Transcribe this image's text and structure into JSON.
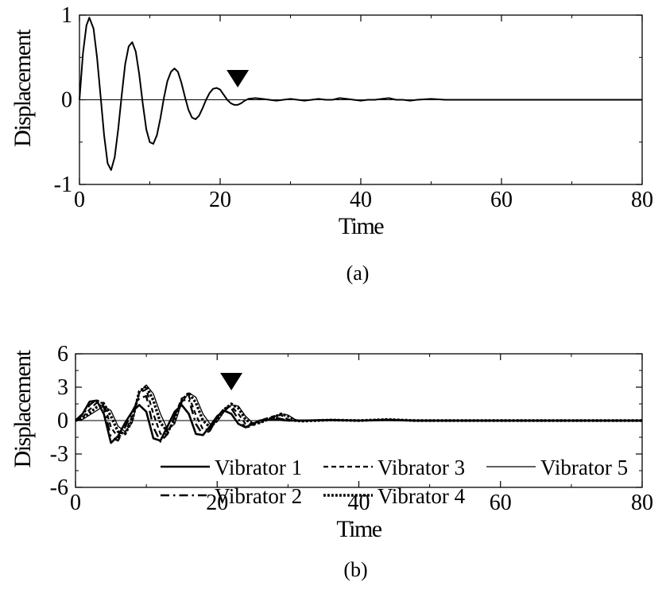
{
  "chart_data": [
    {
      "panel_label": "(a)",
      "type": "line",
      "xlabel": "Time",
      "ylabel": "Displacement",
      "xlim": [
        0,
        80
      ],
      "ylim": [
        -1,
        1
      ],
      "xticks": [
        0,
        20,
        40,
        60,
        80
      ],
      "yticks": [
        -1,
        0,
        1
      ],
      "marker_x": 22.5,
      "series": [
        {
          "values": [
            [
              0,
              0
            ],
            [
              0.5,
              0.55
            ],
            [
              1,
              0.88
            ],
            [
              1.4,
              0.97
            ],
            [
              2,
              0.84
            ],
            [
              2.5,
              0.5
            ],
            [
              3,
              0.05
            ],
            [
              3.5,
              -0.42
            ],
            [
              4,
              -0.75
            ],
            [
              4.5,
              -0.83
            ],
            [
              5,
              -0.68
            ],
            [
              5.5,
              -0.35
            ],
            [
              6,
              0.05
            ],
            [
              6.5,
              0.42
            ],
            [
              7,
              0.63
            ],
            [
              7.5,
              0.68
            ],
            [
              8,
              0.57
            ],
            [
              8.5,
              0.3
            ],
            [
              9,
              -0.05
            ],
            [
              9.5,
              -0.35
            ],
            [
              10,
              -0.5
            ],
            [
              10.5,
              -0.52
            ],
            [
              11,
              -0.42
            ],
            [
              11.5,
              -0.22
            ],
            [
              12,
              0.02
            ],
            [
              12.5,
              0.22
            ],
            [
              13,
              0.33
            ],
            [
              13.5,
              0.37
            ],
            [
              14,
              0.33
            ],
            [
              14.5,
              0.2
            ],
            [
              15,
              0.03
            ],
            [
              15.5,
              -0.12
            ],
            [
              16,
              -0.21
            ],
            [
              16.5,
              -0.23
            ],
            [
              17,
              -0.19
            ],
            [
              17.5,
              -0.1
            ],
            [
              18,
              0.0
            ],
            [
              18.5,
              0.08
            ],
            [
              19,
              0.13
            ],
            [
              19.5,
              0.14
            ],
            [
              20,
              0.12
            ],
            [
              20.5,
              0.06
            ],
            [
              21,
              0.0
            ],
            [
              21.5,
              -0.04
            ],
            [
              22,
              -0.06
            ],
            [
              22.5,
              -0.06
            ],
            [
              23,
              -0.04
            ],
            [
              23.5,
              -0.01
            ],
            [
              24,
              0.01
            ],
            [
              25,
              0.02
            ],
            [
              26,
              0.01
            ],
            [
              27,
              0.0
            ],
            [
              28,
              -0.01
            ],
            [
              29,
              0.0
            ],
            [
              30,
              0.01
            ],
            [
              31,
              0.0
            ],
            [
              32,
              -0.01
            ],
            [
              33,
              0.0
            ],
            [
              34,
              0.01
            ],
            [
              35,
              0.0
            ],
            [
              36,
              0.0
            ],
            [
              37,
              0.02
            ],
            [
              38,
              0.01
            ],
            [
              39,
              0.0
            ],
            [
              40,
              -0.01
            ],
            [
              41,
              0.0
            ],
            [
              42,
              0.0
            ],
            [
              43,
              0.01
            ],
            [
              44,
              0.02
            ],
            [
              45,
              0.0
            ],
            [
              46,
              0.0
            ],
            [
              47,
              -0.01
            ],
            [
              48,
              0.0
            ],
            [
              50,
              0.01
            ],
            [
              52,
              0.0
            ],
            [
              56,
              0.0
            ],
            [
              60,
              0.0
            ],
            [
              70,
              0.0
            ],
            [
              80,
              0.0
            ]
          ]
        }
      ]
    },
    {
      "panel_label": "(b)",
      "type": "line",
      "xlabel": "Time",
      "ylabel": "Displacement",
      "xlim": [
        0,
        80
      ],
      "ylim": [
        -6,
        6
      ],
      "xticks": [
        0,
        20,
        40,
        60,
        80
      ],
      "yticks": [
        -6,
        -3,
        0,
        3,
        6
      ],
      "marker_x": 22,
      "legend_placement": "bottom",
      "series": [
        {
          "name": "Vibrator 1",
          "dash": "solid-thick",
          "values": [
            [
              0,
              0
            ],
            [
              1,
              0.6
            ],
            [
              2,
              1.7
            ],
            [
              3,
              1.8
            ],
            [
              4,
              0.6
            ],
            [
              5,
              -2.0
            ],
            [
              6,
              -1.4
            ],
            [
              7,
              -0.2
            ],
            [
              8,
              0.8
            ],
            [
              9,
              1.4
            ],
            [
              10,
              0.8
            ],
            [
              11,
              -1.6
            ],
            [
              12,
              -1.8
            ],
            [
              13,
              -0.5
            ],
            [
              14,
              0.8
            ],
            [
              15,
              1.4
            ],
            [
              16,
              0.6
            ],
            [
              17,
              -1.2
            ],
            [
              18,
              -1.3
            ],
            [
              19,
              -0.5
            ],
            [
              20,
              0.4
            ],
            [
              21,
              0.9
            ],
            [
              22,
              0.6
            ],
            [
              23,
              -0.3
            ],
            [
              24,
              -0.6
            ],
            [
              25,
              -0.3
            ],
            [
              26,
              0.0
            ],
            [
              28,
              0.1
            ],
            [
              30,
              0.0
            ],
            [
              32,
              0.0
            ],
            [
              36,
              0.05
            ],
            [
              40,
              0.0
            ],
            [
              44,
              0.05
            ],
            [
              48,
              0.0
            ],
            [
              52,
              0.0
            ],
            [
              56,
              0.0
            ],
            [
              60,
              0.0
            ],
            [
              70,
              0.0
            ],
            [
              80,
              0.0
            ]
          ]
        },
        {
          "name": "Vibrator 2",
          "dash": "dash-dot",
          "values": [
            [
              0,
              0
            ],
            [
              1,
              0.5
            ],
            [
              2,
              1.4
            ],
            [
              3,
              1.9
            ],
            [
              4,
              1.2
            ],
            [
              5,
              -1.5
            ],
            [
              6,
              -1.8
            ],
            [
              7,
              -0.6
            ],
            [
              8,
              0.8
            ],
            [
              9,
              2.0
            ],
            [
              10,
              2.2
            ],
            [
              11,
              -0.6
            ],
            [
              12,
              -1.9
            ],
            [
              13,
              -1.2
            ],
            [
              14,
              0.4
            ],
            [
              15,
              1.8
            ],
            [
              16,
              1.9
            ],
            [
              17,
              -0.3
            ],
            [
              18,
              -1.3
            ],
            [
              19,
              -0.9
            ],
            [
              20,
              0.3
            ],
            [
              21,
              1.1
            ],
            [
              22,
              1.1
            ],
            [
              23,
              0.1
            ],
            [
              24,
              -0.6
            ],
            [
              25,
              -0.5
            ],
            [
              26,
              0.0
            ],
            [
              28,
              0.3
            ],
            [
              30,
              0.0
            ],
            [
              32,
              0.0
            ],
            [
              36,
              0.05
            ],
            [
              40,
              0.0
            ],
            [
              44,
              0.05
            ],
            [
              48,
              0.0
            ],
            [
              52,
              0.0
            ],
            [
              60,
              0.0
            ],
            [
              70,
              0.0
            ],
            [
              80,
              0.0
            ]
          ]
        },
        {
          "name": "Vibrator 3",
          "dash": "dashed",
          "values": [
            [
              0,
              0
            ],
            [
              1,
              0.3
            ],
            [
              2,
              1.0
            ],
            [
              3,
              1.6
            ],
            [
              4,
              1.6
            ],
            [
              5,
              -0.6
            ],
            [
              6,
              -1.5
            ],
            [
              7,
              -1.1
            ],
            [
              8,
              0.4
            ],
            [
              9,
              2.5
            ],
            [
              10,
              2.8
            ],
            [
              11,
              0.6
            ],
            [
              12,
              -1.2
            ],
            [
              13,
              -1.2
            ],
            [
              14,
              0.4
            ],
            [
              15,
              2.0
            ],
            [
              16,
              2.2
            ],
            [
              17,
              0.5
            ],
            [
              18,
              -0.8
            ],
            [
              19,
              -0.8
            ],
            [
              20,
              0.2
            ],
            [
              21,
              1.1
            ],
            [
              22,
              1.3
            ],
            [
              23,
              0.6
            ],
            [
              24,
              -0.3
            ],
            [
              25,
              -0.4
            ],
            [
              26,
              0.0
            ],
            [
              28,
              0.4
            ],
            [
              29,
              0.5
            ],
            [
              30,
              0.1
            ],
            [
              32,
              0.0
            ],
            [
              36,
              0.05
            ],
            [
              40,
              0.0
            ],
            [
              44,
              0.1
            ],
            [
              48,
              0.0
            ],
            [
              52,
              0.0
            ],
            [
              60,
              0.0
            ],
            [
              70,
              0.0
            ],
            [
              80,
              0.0
            ]
          ]
        },
        {
          "name": "Vibrator 4",
          "dash": "dotted-thick",
          "values": [
            [
              0,
              0
            ],
            [
              1,
              0.2
            ],
            [
              2,
              0.7
            ],
            [
              3,
              1.2
            ],
            [
              4,
              1.5
            ],
            [
              5,
              0.4
            ],
            [
              6,
              -1.0
            ],
            [
              7,
              -1.2
            ],
            [
              8,
              0.0
            ],
            [
              9,
              2.6
            ],
            [
              10,
              3.1
            ],
            [
              11,
              1.8
            ],
            [
              12,
              -0.2
            ],
            [
              13,
              -1.0
            ],
            [
              14,
              0.0
            ],
            [
              15,
              1.8
            ],
            [
              16,
              2.5
            ],
            [
              17,
              1.6
            ],
            [
              18,
              0.0
            ],
            [
              19,
              -0.6
            ],
            [
              20,
              0.0
            ],
            [
              21,
              1.0
            ],
            [
              22,
              1.5
            ],
            [
              23,
              1.1
            ],
            [
              24,
              0.1
            ],
            [
              25,
              -0.3
            ],
            [
              26,
              -0.2
            ],
            [
              28,
              0.3
            ],
            [
              29,
              0.6
            ],
            [
              30,
              0.4
            ],
            [
              31,
              0.0
            ],
            [
              32,
              -0.05
            ],
            [
              36,
              0.05
            ],
            [
              40,
              0.0
            ],
            [
              44,
              0.1
            ],
            [
              48,
              0.0
            ],
            [
              52,
              0.0
            ],
            [
              60,
              0.0
            ],
            [
              70,
              0.0
            ],
            [
              80,
              0.0
            ]
          ]
        },
        {
          "name": "Vibrator 5",
          "dash": "solid-thin",
          "values": [
            [
              0,
              0
            ],
            [
              1,
              0.1
            ],
            [
              2,
              0.5
            ],
            [
              3,
              0.9
            ],
            [
              4,
              1.3
            ],
            [
              5,
              0.9
            ],
            [
              6,
              -0.5
            ],
            [
              7,
              -1.0
            ],
            [
              8,
              -0.2
            ],
            [
              9,
              2.5
            ],
            [
              10,
              3.2
            ],
            [
              11,
              2.4
            ],
            [
              12,
              0.6
            ],
            [
              13,
              -0.8
            ],
            [
              14,
              -0.3
            ],
            [
              15,
              1.6
            ],
            [
              16,
              2.5
            ],
            [
              17,
              2.1
            ],
            [
              18,
              0.6
            ],
            [
              19,
              -0.3
            ],
            [
              20,
              -0.1
            ],
            [
              21,
              0.8
            ],
            [
              22,
              1.4
            ],
            [
              23,
              1.3
            ],
            [
              24,
              0.4
            ],
            [
              25,
              -0.2
            ],
            [
              26,
              -0.2
            ],
            [
              28,
              0.3
            ],
            [
              29,
              0.6
            ],
            [
              30,
              0.5
            ],
            [
              31,
              0.1
            ],
            [
              32,
              -0.05
            ],
            [
              36,
              0.05
            ],
            [
              40,
              0.0
            ],
            [
              44,
              0.1
            ],
            [
              48,
              0.0
            ],
            [
              52,
              0.0
            ],
            [
              60,
              0.0
            ],
            [
              70,
              0.0
            ],
            [
              80,
              0.0
            ]
          ]
        }
      ]
    }
  ]
}
